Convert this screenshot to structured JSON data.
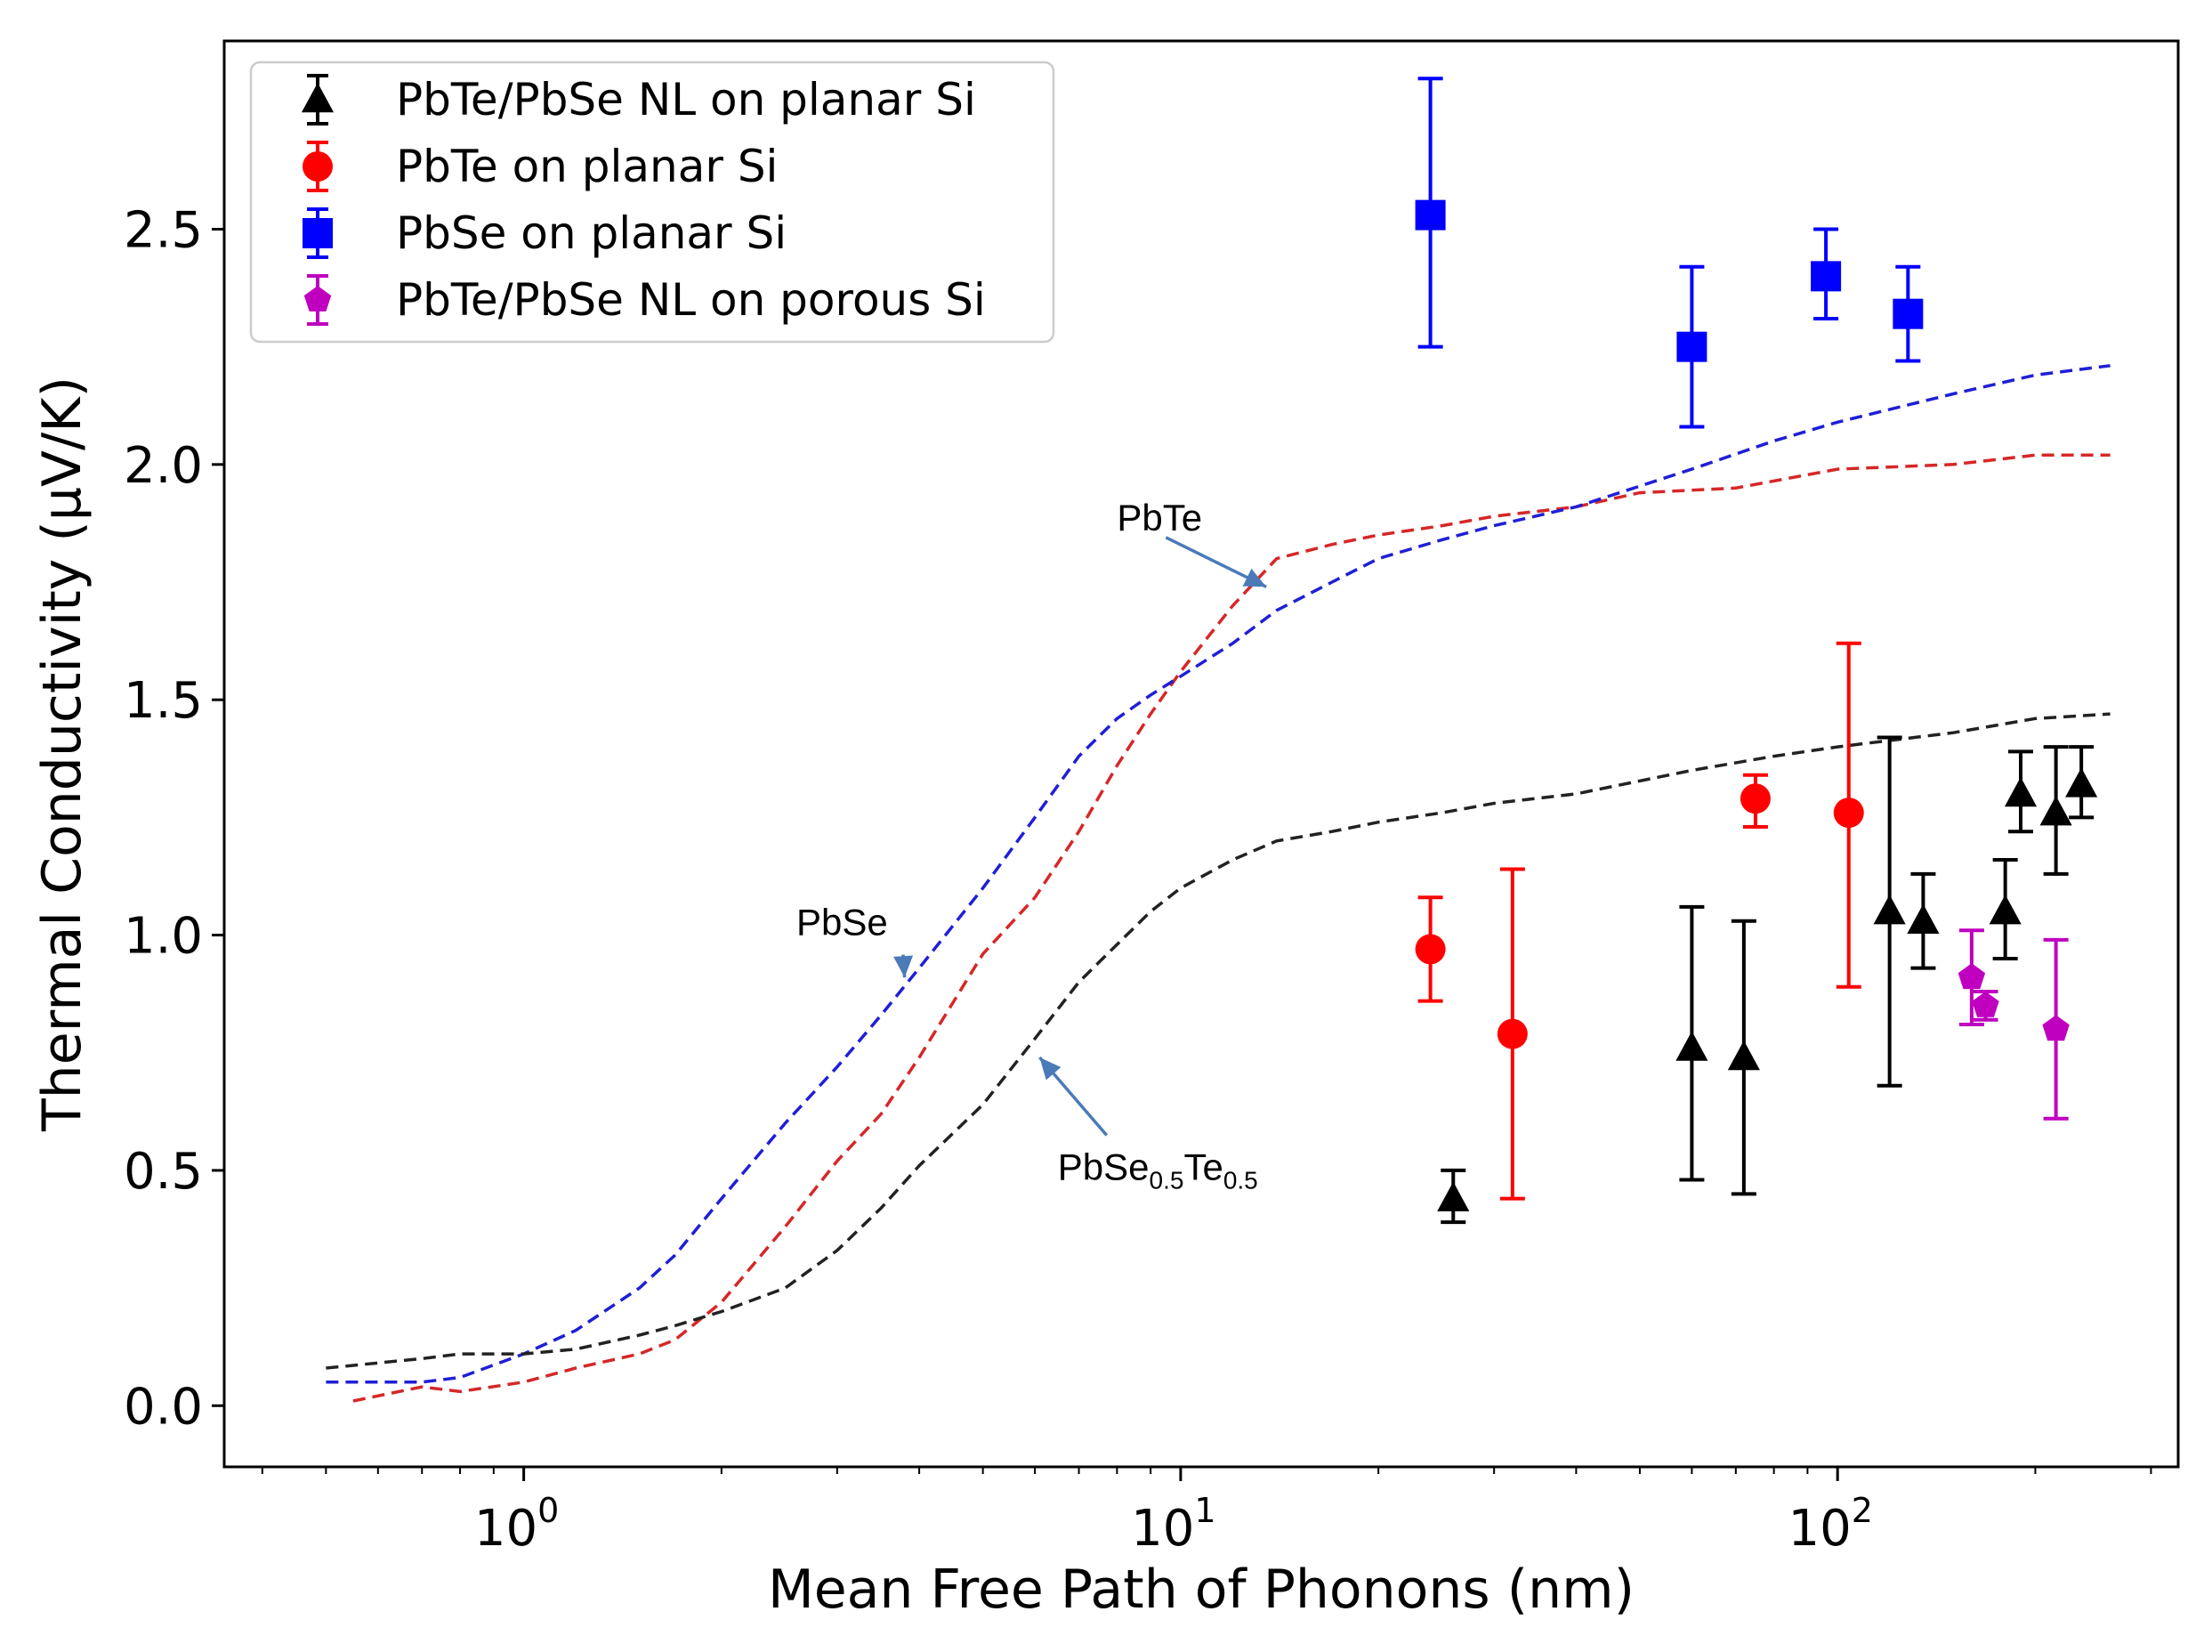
{
  "chart_data": {
    "type": "scatter",
    "title": "",
    "xlabel": "Mean Free Path of Phonons (nm)",
    "ylabel": "Thermal Conductivity (µV/K)",
    "xscale": "log",
    "xlim": [
      0.35,
      330
    ],
    "ylim": [
      -0.13,
      2.9
    ],
    "xticks": [
      {
        "value": 1,
        "base": "10",
        "exp": "0"
      },
      {
        "value": 10,
        "base": "10",
        "exp": "1"
      },
      {
        "value": 100,
        "base": "10",
        "exp": "2"
      }
    ],
    "yticks": [
      {
        "value": 0.0,
        "label": "0.0"
      },
      {
        "value": 0.5,
        "label": "0.5"
      },
      {
        "value": 1.0,
        "label": "1.0"
      },
      {
        "value": 1.5,
        "label": "1.5"
      },
      {
        "value": 2.0,
        "label": "2.0"
      },
      {
        "value": 2.5,
        "label": "2.5"
      }
    ],
    "legend_position": "top-left",
    "series": [
      {
        "name": "PbTe/PbSe NL on planar Si",
        "marker": "triangle",
        "color": "#000000",
        "points": [
          {
            "x": 26,
            "y": 0.44,
            "lo": 0.39,
            "hi": 0.5
          },
          {
            "x": 60,
            "y": 0.76,
            "lo": 0.48,
            "hi": 1.06
          },
          {
            "x": 72,
            "y": 0.74,
            "lo": 0.45,
            "hi": 1.03
          },
          {
            "x": 120,
            "y": 1.05,
            "lo": 0.68,
            "hi": 1.42
          },
          {
            "x": 135,
            "y": 1.03,
            "lo": 0.93,
            "hi": 1.13
          },
          {
            "x": 180,
            "y": 1.05,
            "lo": 0.95,
            "hi": 1.16
          },
          {
            "x": 190,
            "y": 1.3,
            "lo": 1.22,
            "hi": 1.39
          },
          {
            "x": 215,
            "y": 1.26,
            "lo": 1.13,
            "hi": 1.4
          },
          {
            "x": 235,
            "y": 1.32,
            "lo": 1.25,
            "hi": 1.4
          }
        ]
      },
      {
        "name": "PbTe on planar Si",
        "marker": "circle",
        "color": "#ff0000",
        "points": [
          {
            "x": 24,
            "y": 0.97,
            "lo": 0.86,
            "hi": 1.08
          },
          {
            "x": 32,
            "y": 0.79,
            "lo": 0.44,
            "hi": 1.14
          },
          {
            "x": 75,
            "y": 1.29,
            "lo": 1.23,
            "hi": 1.34
          },
          {
            "x": 104,
            "y": 1.26,
            "lo": 0.89,
            "hi": 1.62
          }
        ]
      },
      {
        "name": "PbSe on planar Si",
        "marker": "square",
        "color": "#0000ff",
        "points": [
          {
            "x": 24,
            "y": 2.53,
            "lo": 2.25,
            "hi": 2.82
          },
          {
            "x": 60,
            "y": 2.25,
            "lo": 2.08,
            "hi": 2.42
          },
          {
            "x": 96,
            "y": 2.4,
            "lo": 2.31,
            "hi": 2.5
          },
          {
            "x": 128,
            "y": 2.32,
            "lo": 2.22,
            "hi": 2.42
          }
        ]
      },
      {
        "name": "PbTe/PbSe NL on porous Si",
        "marker": "pentagon",
        "color": "#bf00bf",
        "points": [
          {
            "x": 160,
            "y": 0.91,
            "lo": 0.81,
            "hi": 1.01
          },
          {
            "x": 168,
            "y": 0.85,
            "lo": 0.82,
            "hi": 0.88
          },
          {
            "x": 215,
            "y": 0.8,
            "lo": 0.61,
            "hi": 0.99
          }
        ]
      }
    ],
    "curves": [
      {
        "name": "PbTe",
        "style": "dashed",
        "color": "#d62728",
        "x": [
          0.55,
          0.7,
          0.8,
          1.0,
          1.2,
          1.5,
          1.7,
          2.0,
          2.5,
          3.0,
          3.5,
          4.0,
          5.0,
          6.0,
          7.0,
          8.0,
          9.0,
          10.0,
          12.0,
          14.0,
          17.0,
          20.0,
          25.0,
          30.0,
          40.0,
          50.0,
          70.0,
          100.0,
          150.0,
          200.0,
          260.0
        ],
        "y": [
          0.01,
          0.04,
          0.03,
          0.05,
          0.08,
          0.11,
          0.14,
          0.22,
          0.38,
          0.52,
          0.62,
          0.74,
          0.96,
          1.08,
          1.22,
          1.36,
          1.47,
          1.56,
          1.7,
          1.8,
          1.83,
          1.85,
          1.87,
          1.89,
          1.91,
          1.94,
          1.95,
          1.99,
          2.0,
          2.02,
          2.02
        ]
      },
      {
        "name": "PbSe",
        "style": "dashed",
        "color": "#1f1fd6",
        "x": [
          0.5,
          0.7,
          0.8,
          1.0,
          1.2,
          1.5,
          1.7,
          2.0,
          2.5,
          3.0,
          3.5,
          4.0,
          5.0,
          6.0,
          7.0,
          8.0,
          9.0,
          10.0,
          12.0,
          14.0,
          17.0,
          20.0,
          25.0,
          30.0,
          40.0,
          60.0,
          80.0,
          100.0,
          150.0,
          200.0,
          260.0
        ],
        "y": [
          0.05,
          0.05,
          0.06,
          0.11,
          0.16,
          0.25,
          0.32,
          0.44,
          0.6,
          0.72,
          0.83,
          0.93,
          1.1,
          1.25,
          1.38,
          1.46,
          1.51,
          1.55,
          1.62,
          1.69,
          1.75,
          1.8,
          1.84,
          1.87,
          1.91,
          1.99,
          2.05,
          2.09,
          2.15,
          2.19,
          2.21
        ]
      },
      {
        "name": "PbSe0.5Te0.5",
        "style": "dashed",
        "color": "#222222",
        "x": [
          0.5,
          0.7,
          0.8,
          1.0,
          1.2,
          1.5,
          1.7,
          2.0,
          2.5,
          3.0,
          3.5,
          4.0,
          5.0,
          6.0,
          7.0,
          8.0,
          9.0,
          10.0,
          12.0,
          14.0,
          17.0,
          20.0,
          25.0,
          30.0,
          40.0,
          60.0,
          80.0,
          100.0,
          150.0,
          200.0,
          260.0
        ],
        "y": [
          0.08,
          0.1,
          0.11,
          0.11,
          0.12,
          0.15,
          0.17,
          0.2,
          0.25,
          0.33,
          0.42,
          0.51,
          0.64,
          0.78,
          0.9,
          0.98,
          1.05,
          1.1,
          1.16,
          1.2,
          1.22,
          1.24,
          1.26,
          1.28,
          1.3,
          1.35,
          1.38,
          1.4,
          1.43,
          1.46,
          1.47
        ]
      }
    ],
    "annotations": [
      {
        "label": "PbTe",
        "text_x": 8.0,
        "text_y": 1.86,
        "arrow_x": 13.5,
        "arrow_y": 1.74
      },
      {
        "label": "PbSe",
        "text_x": 2.6,
        "text_y": 1.0,
        "arrow_x": 3.8,
        "arrow_y": 0.91
      },
      {
        "label": "PbSe0.5Te0.5",
        "text_x": 6.5,
        "text_y": 0.48,
        "arrow_x": 6.1,
        "arrow_y": 0.74,
        "base": "PbSe",
        "sub1": "0.5",
        "mid": "Te",
        "sub2": "0.5"
      }
    ]
  }
}
